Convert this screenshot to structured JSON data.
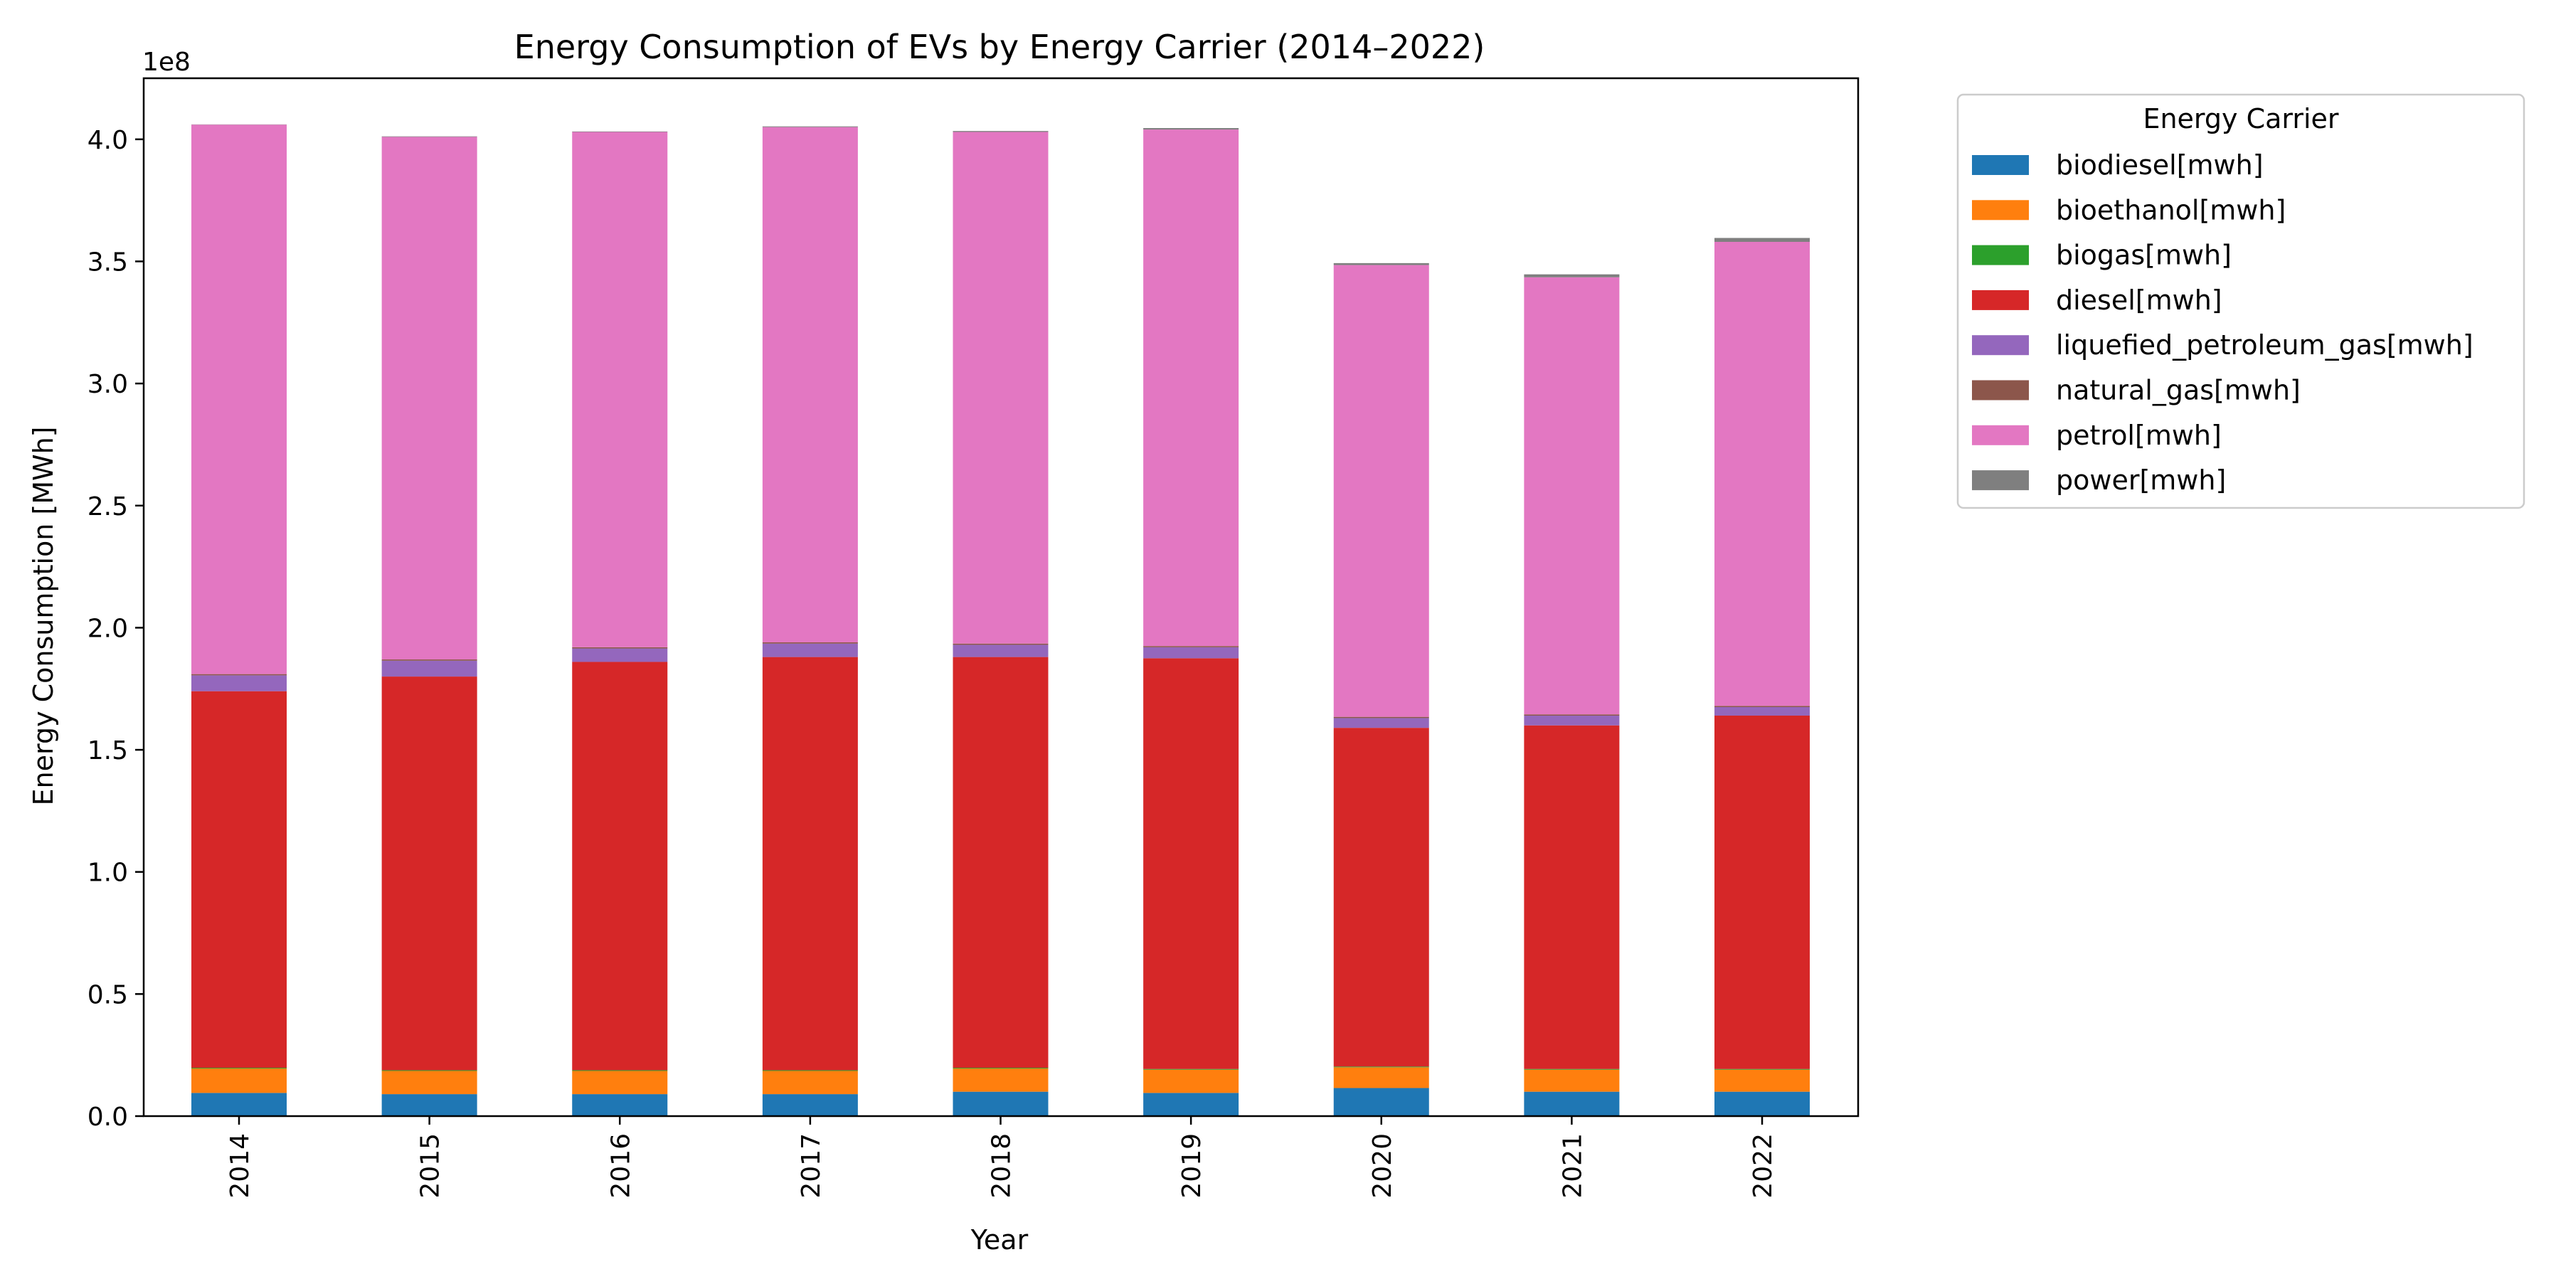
{
  "chart_data": {
    "type": "bar",
    "stacked": true,
    "title": "Energy Consumption of EVs by Energy Carrier (2014–2022)",
    "xlabel": "Year",
    "ylabel": "Energy Consumption [MWh]",
    "y_offset_text": "1e8",
    "ylim": [
      0,
      4.25
    ],
    "y_ticks": [
      0.0,
      0.5,
      1.0,
      1.5,
      2.0,
      2.5,
      3.0,
      3.5,
      4.0
    ],
    "y_tick_labels": [
      "0.0",
      "0.5",
      "1.0",
      "1.5",
      "2.0",
      "2.5",
      "3.0",
      "3.5",
      "4.0"
    ],
    "categories": [
      "2014",
      "2015",
      "2016",
      "2017",
      "2018",
      "2019",
      "2020",
      "2021",
      "2022"
    ],
    "legend_title": "Energy Carrier",
    "legend_position": "outside right, top",
    "grid": false,
    "series": [
      {
        "name": "biodiesel[mwh]",
        "color": "#1f77b4",
        "values": [
          0.095,
          0.09,
          0.09,
          0.09,
          0.1,
          0.095,
          0.115,
          0.1,
          0.1
        ]
      },
      {
        "name": "bioethanol[mwh]",
        "color": "#ff7f0e",
        "values": [
          0.1,
          0.095,
          0.095,
          0.095,
          0.095,
          0.095,
          0.085,
          0.09,
          0.09
        ]
      },
      {
        "name": "biogas[mwh]",
        "color": "#2ca02c",
        "values": [
          0.003,
          0.003,
          0.003,
          0.003,
          0.003,
          0.003,
          0.003,
          0.003,
          0.003
        ]
      },
      {
        "name": "diesel[mwh]",
        "color": "#d62728",
        "values": [
          1.542,
          1.612,
          1.672,
          1.692,
          1.682,
          1.682,
          1.387,
          1.407,
          1.447
        ]
      },
      {
        "name": "liquefied_petroleum_gas[mwh]",
        "color": "#9467bd",
        "values": [
          0.065,
          0.065,
          0.055,
          0.055,
          0.05,
          0.045,
          0.04,
          0.04,
          0.035
        ]
      },
      {
        "name": "natural_gas[mwh]",
        "color": "#8c564b",
        "values": [
          0.005,
          0.005,
          0.005,
          0.005,
          0.005,
          0.005,
          0.005,
          0.005,
          0.005
        ]
      },
      {
        "name": "petrol[mwh]",
        "color": "#e377c2",
        "values": [
          2.25,
          2.14,
          2.11,
          2.11,
          2.095,
          2.115,
          1.85,
          1.79,
          1.9
        ]
      },
      {
        "name": "power[mwh]",
        "color": "#7f7f7f",
        "values": [
          0.001,
          0.002,
          0.002,
          0.003,
          0.004,
          0.006,
          0.008,
          0.012,
          0.016
        ]
      }
    ]
  }
}
